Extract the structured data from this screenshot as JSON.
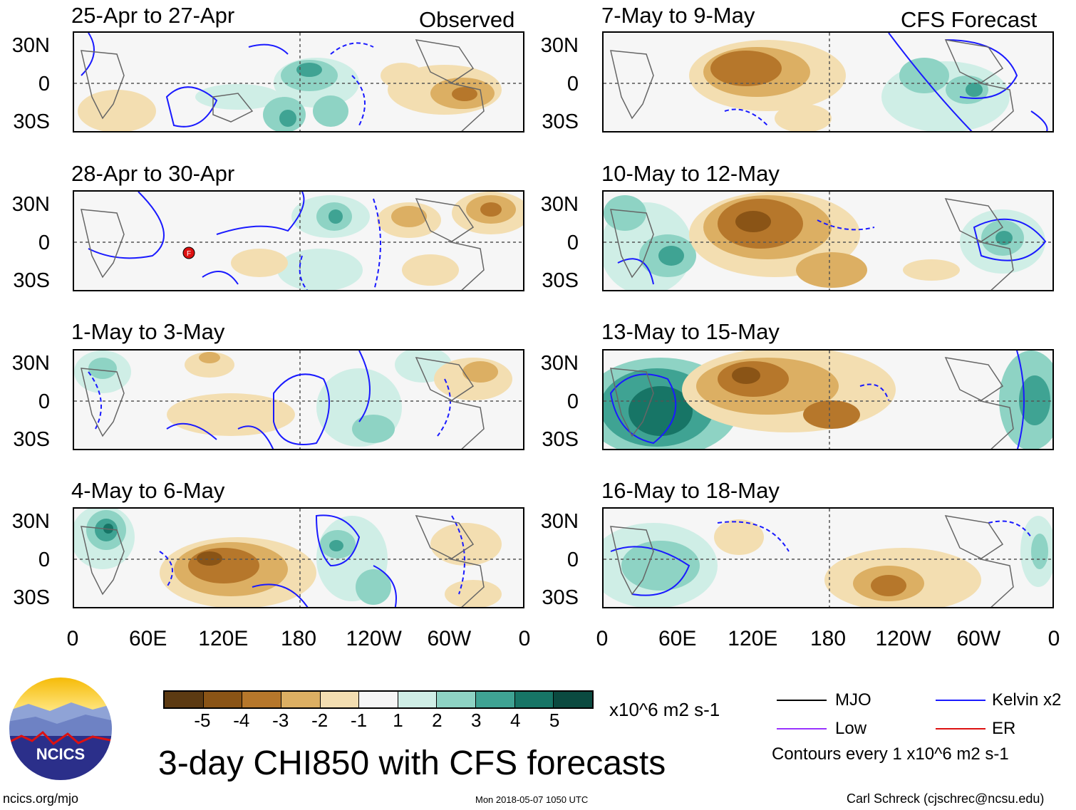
{
  "panels_left": [
    {
      "title": "25-Apr to 27-Apr",
      "tag": "Observed"
    },
    {
      "title": "28-Apr to 30-Apr",
      "tag": ""
    },
    {
      "title": "1-May to 3-May",
      "tag": ""
    },
    {
      "title": "4-May to 6-May",
      "tag": ""
    }
  ],
  "panels_right": [
    {
      "title": "7-May to 9-May",
      "tag": "CFS Forecast"
    },
    {
      "title": "10-May to 12-May",
      "tag": ""
    },
    {
      "title": "13-May to 15-May",
      "tag": ""
    },
    {
      "title": "16-May to 18-May",
      "tag": ""
    }
  ],
  "lat_labels": [
    "30N",
    "0",
    "30S"
  ],
  "lon_labels": [
    "0",
    "60E",
    "120E",
    "180",
    "120W",
    "60W",
    "0"
  ],
  "marker_label": "F",
  "colorbar": {
    "unit": "x10^6 m2 s-1",
    "ticks": [
      "-5",
      "-4",
      "-3",
      "-2",
      "-1",
      "1",
      "2",
      "3",
      "4",
      "5"
    ],
    "colors": [
      "#5c3a12",
      "#8a5416",
      "#b6772b",
      "#dcaf63",
      "#f3deb1",
      "#f6f6f6",
      "#cfeee6",
      "#8ed3c4",
      "#3fa393",
      "#177566",
      "#0b4a40"
    ]
  },
  "legend": {
    "mjo": "MJO",
    "kelvin": "Kelvin x2",
    "low": "Low",
    "er": "ER",
    "contours": "Contours every 1 x10^6 m2 s-1",
    "colors": {
      "mjo": "#000000",
      "kelvin": "#1a1aff",
      "low": "#9933ff",
      "er": "#dd1111"
    }
  },
  "main_title": "3-day CHI850 with CFS forecasts",
  "logo_text": "NCICS",
  "footer": {
    "left": "ncics.org/mjo",
    "center": "Mon 2018-05-07 1050 UTC",
    "right": "Carl Schreck (cjschrec@ncsu.edu)"
  }
}
